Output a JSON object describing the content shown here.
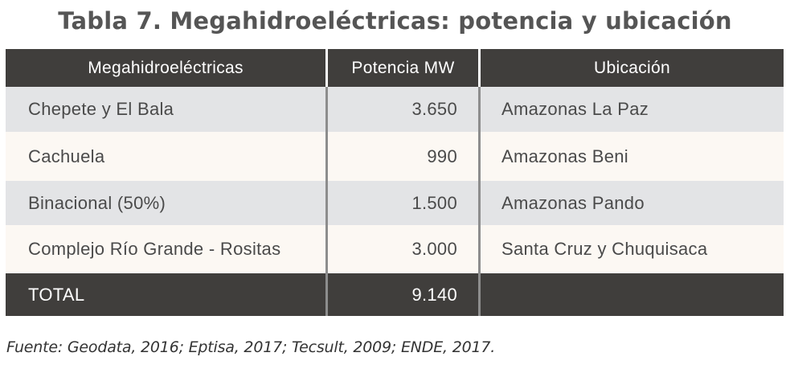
{
  "title": "Tabla 7. Megahidroeléctricas: potencia y ubicación",
  "table": {
    "headers": [
      "Megahidroeléctricas",
      "Potencia MW",
      "Ubicación"
    ],
    "rows": [
      {
        "name": "Chepete y El Bala",
        "power": "3.650",
        "location": "Amazonas La Paz"
      },
      {
        "name": "Cachuela",
        "power": "990",
        "location": "Amazonas Beni"
      },
      {
        "name": "Binacional (50%)",
        "power": "1.500",
        "location": "Amazonas Pando"
      },
      {
        "name": "Complejo Río Grande - Rositas",
        "power": "3.000",
        "location": "Santa Cruz y Chuquisaca"
      }
    ],
    "total": {
      "label": "TOTAL",
      "power": "9.140",
      "location": ""
    }
  },
  "source": "Fuente: Geodata, 2016; Eptisa, 2017; Tecsult, 2009; ENDE, 2017.",
  "colors": {
    "header_bg": "#403e3c",
    "row_gray": "#e3e4e6",
    "row_cream": "#fcf8f3",
    "title_text": "#555555"
  }
}
